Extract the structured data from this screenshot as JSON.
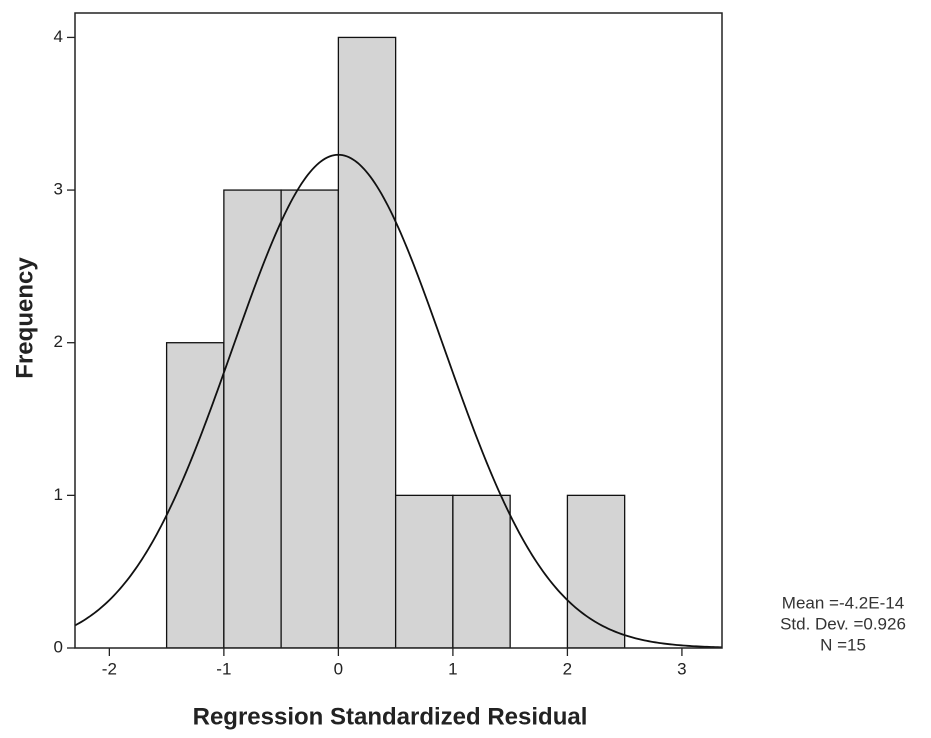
{
  "chart_data": {
    "type": "histogram",
    "x_label": "Regression Standardized Residual",
    "y_label": "Frequency",
    "bins": [
      -1.5,
      -1,
      -0.5,
      0,
      0.5,
      1,
      1.5,
      2,
      2.5
    ],
    "values": [
      2,
      3,
      3,
      4,
      1,
      1,
      0,
      1
    ],
    "color": "#d4d4d4",
    "xlim": [
      -2.3,
      3.35
    ],
    "ylim": [
      0,
      4.16
    ],
    "xticks": [
      -2,
      -1,
      0,
      1,
      2,
      3
    ],
    "yticks": [
      0,
      1,
      2,
      3,
      4
    ],
    "stats": [
      {
        "value": -4.2e-14,
        "label": "Mean =-4.2E-14"
      },
      {
        "value": 0.926,
        "label": "Std. Dev. =0.926"
      },
      {
        "value": 15,
        "label": "N =15"
      }
    ]
  }
}
